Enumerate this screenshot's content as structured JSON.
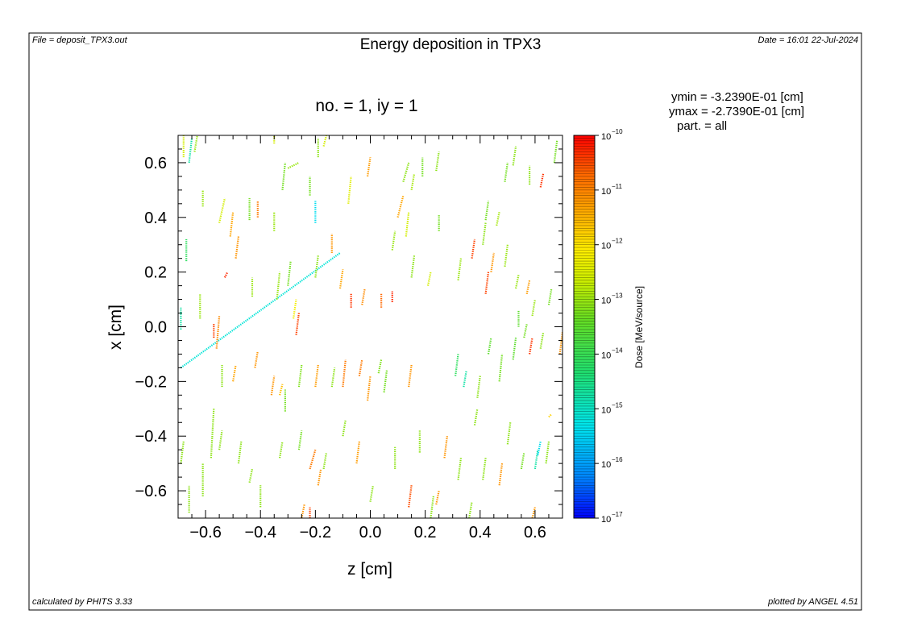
{
  "header": {
    "file": "File = deposit_TPX3.out",
    "title": "Energy deposition in TPX3",
    "date": "Date = 16:01 22-Jul-2024"
  },
  "footer": {
    "calculated": "calculated by PHITS 3.33",
    "plotted": "plotted by ANGEL 4.51"
  },
  "info": {
    "ymin": "ymin  =  -3.2390E-01 [cm]",
    "ymax": "ymax  =  -2.7390E-01 [cm]",
    "part": "part. = all"
  },
  "chart_data": {
    "type": "heatmap",
    "title": "Energy deposition in TPX3",
    "subtitle": "no. =  1,  iy =  1",
    "xlabel": "z [cm]",
    "ylabel": "x [cm]",
    "xlim": [
      -0.7,
      0.7
    ],
    "ylim": [
      -0.7,
      0.7
    ],
    "xticks": [
      -0.6,
      -0.4,
      -0.2,
      0.0,
      0.2,
      0.4,
      0.6
    ],
    "xtick_labels": [
      "−0.6",
      "−0.4",
      "−0.2",
      "0.0",
      "0.2",
      "0.4",
      "0.6"
    ],
    "yticks": [
      0.6,
      0.4,
      0.2,
      0.0,
      -0.2,
      -0.4,
      -0.6
    ],
    "ytick_labels": [
      "0.6",
      "0.4",
      "0.2",
      "0.0",
      "−0.2",
      "−0.4",
      "−0.6"
    ],
    "colorbar": {
      "label": "Dose [MeV/source]",
      "scale": "log",
      "range": [
        1e-17,
        1e-10
      ],
      "tick_exponents": [
        -10,
        -11,
        -12,
        -13,
        -14,
        -15,
        -16,
        -17
      ],
      "tick_base": "10",
      "colors": [
        "#0000ff",
        "#0088ff",
        "#00e5ee",
        "#20e070",
        "#66dd22",
        "#ccee00",
        "#ffee00",
        "#ffaa00",
        "#ff6600",
        "#ff0000"
      ]
    },
    "tracks": [
      {
        "z0": -0.69,
        "x0": -0.15,
        "z1": -0.11,
        "x1": 0.27,
        "level": -15.3
      },
      {
        "z0": -0.68,
        "x0": 0.62,
        "z1": -0.68,
        "x1": 0.7,
        "level": -13.0
      },
      {
        "z0": -0.66,
        "x0": 0.6,
        "z1": -0.65,
        "x1": 0.69,
        "level": -15.0
      },
      {
        "z0": -0.64,
        "x0": 0.64,
        "z1": -0.63,
        "x1": 0.7,
        "level": -13.5
      },
      {
        "z0": -0.61,
        "x0": 0.44,
        "z1": -0.61,
        "x1": 0.5,
        "level": -13.5
      },
      {
        "z0": -0.67,
        "x0": 0.24,
        "z1": -0.67,
        "x1": 0.32,
        "level": -14.5
      },
      {
        "z0": -0.62,
        "x0": 0.03,
        "z1": -0.62,
        "x1": 0.12,
        "level": -13.5
      },
      {
        "z0": -0.69,
        "x0": -0.01,
        "z1": -0.69,
        "x1": 0.07,
        "level": -15.0
      },
      {
        "z0": -0.55,
        "x0": 0.38,
        "z1": -0.53,
        "x1": 0.47,
        "level": -13.0
      },
      {
        "z0": -0.51,
        "x0": 0.33,
        "z1": -0.5,
        "x1": 0.42,
        "level": -11.5
      },
      {
        "z0": -0.49,
        "x0": 0.25,
        "z1": -0.48,
        "x1": 0.33,
        "level": -11.3
      },
      {
        "z0": -0.44,
        "x0": 0.39,
        "z1": -0.44,
        "x1": 0.47,
        "level": -13.8
      },
      {
        "z0": -0.41,
        "x0": 0.4,
        "z1": -0.41,
        "x1": 0.46,
        "level": -11.0
      },
      {
        "z0": -0.53,
        "x0": 0.18,
        "z1": -0.52,
        "x1": 0.2,
        "level": -10.3
      },
      {
        "z0": -0.56,
        "x0": -0.08,
        "z1": -0.55,
        "x1": 0.04,
        "level": -11.2
      },
      {
        "z0": -0.57,
        "x0": -0.04,
        "z1": -0.57,
        "x1": 0.01,
        "level": -10.5
      },
      {
        "z0": -0.43,
        "x0": 0.11,
        "z1": -0.43,
        "x1": 0.18,
        "level": -13.5
      },
      {
        "z0": -0.34,
        "x0": 0.1,
        "z1": -0.33,
        "x1": 0.2,
        "level": -13.5
      },
      {
        "z0": -0.3,
        "x0": 0.15,
        "z1": -0.29,
        "x1": 0.24,
        "level": -13.8
      },
      {
        "z0": -0.28,
        "x0": 0.03,
        "z1": -0.27,
        "x1": 0.1,
        "level": -12.5
      },
      {
        "z0": -0.27,
        "x0": -0.03,
        "z1": -0.26,
        "x1": 0.05,
        "level": -10.5
      },
      {
        "z0": -0.35,
        "x0": 0.35,
        "z1": -0.35,
        "x1": 0.42,
        "level": -13.5
      },
      {
        "z0": -0.32,
        "x0": 0.5,
        "z1": -0.31,
        "x1": 0.6,
        "level": -13.8
      },
      {
        "z0": -0.2,
        "x0": 0.38,
        "z1": -0.2,
        "x1": 0.46,
        "level": -15.5
      },
      {
        "z0": -0.3,
        "x0": 0.58,
        "z1": -0.26,
        "x1": 0.6,
        "level": -13.5
      },
      {
        "z0": -0.22,
        "x0": 0.48,
        "z1": -0.22,
        "x1": 0.55,
        "level": -13.8
      },
      {
        "z0": -0.19,
        "x0": 0.62,
        "z1": -0.19,
        "x1": 0.69,
        "level": -13.6
      },
      {
        "z0": -0.35,
        "x0": 0.67,
        "z1": -0.35,
        "x1": 0.7,
        "level": -13.0
      },
      {
        "z0": -0.17,
        "x0": 0.66,
        "z1": -0.16,
        "x1": 0.7,
        "level": -13.0
      },
      {
        "z0": -0.14,
        "x0": 0.27,
        "z1": -0.14,
        "x1": 0.34,
        "level": -11.3
      },
      {
        "z0": -0.2,
        "x0": 0.18,
        "z1": -0.19,
        "x1": 0.26,
        "level": -13.6
      },
      {
        "z0": -0.11,
        "x0": 0.14,
        "z1": -0.1,
        "x1": 0.21,
        "level": -11.5
      },
      {
        "z0": -0.08,
        "x0": 0.45,
        "z1": -0.07,
        "x1": 0.55,
        "level": -12.8
      },
      {
        "z0": -0.01,
        "x0": 0.55,
        "z1": 0.0,
        "x1": 0.62,
        "level": -11.4
      },
      {
        "z0": -0.07,
        "x0": 0.07,
        "z1": -0.07,
        "x1": 0.12,
        "level": -10.4
      },
      {
        "z0": -0.03,
        "x0": 0.08,
        "z1": -0.02,
        "x1": 0.14,
        "level": -11.2
      },
      {
        "z0": 0.04,
        "x0": 0.07,
        "z1": 0.04,
        "x1": 0.12,
        "level": -10.8
      },
      {
        "z0": 0.08,
        "x0": 0.09,
        "z1": 0.08,
        "x1": 0.13,
        "level": -10.3
      },
      {
        "z0": 0.1,
        "x0": 0.4,
        "z1": 0.12,
        "x1": 0.48,
        "level": -11.5
      },
      {
        "z0": 0.12,
        "x0": 0.53,
        "z1": 0.14,
        "x1": 0.6,
        "level": -13.6
      },
      {
        "z0": 0.15,
        "x0": 0.5,
        "z1": 0.16,
        "x1": 0.56,
        "level": -13.4
      },
      {
        "z0": 0.08,
        "x0": 0.28,
        "z1": 0.09,
        "x1": 0.35,
        "level": -13.5
      },
      {
        "z0": 0.13,
        "x0": 0.33,
        "z1": 0.14,
        "x1": 0.42,
        "level": -13.0
      },
      {
        "z0": 0.15,
        "x0": 0.18,
        "z1": 0.16,
        "x1": 0.26,
        "level": -13.6
      },
      {
        "z0": 0.19,
        "x0": 0.55,
        "z1": 0.19,
        "x1": 0.62,
        "level": -13.8
      },
      {
        "z0": 0.24,
        "x0": 0.57,
        "z1": 0.25,
        "x1": 0.64,
        "level": -13.6
      },
      {
        "z0": 0.25,
        "x0": 0.35,
        "z1": 0.25,
        "x1": 0.41,
        "level": -13.8
      },
      {
        "z0": 0.21,
        "x0": 0.15,
        "z1": 0.22,
        "x1": 0.2,
        "level": -13.0
      },
      {
        "z0": 0.32,
        "x0": 0.17,
        "z1": 0.33,
        "x1": 0.25,
        "level": -13.5
      },
      {
        "z0": 0.37,
        "x0": 0.25,
        "z1": 0.38,
        "x1": 0.32,
        "level": -10.5
      },
      {
        "z0": 0.41,
        "x0": 0.3,
        "z1": 0.42,
        "x1": 0.38,
        "level": -13.6
      },
      {
        "z0": 0.42,
        "x0": 0.39,
        "z1": 0.43,
        "x1": 0.46,
        "level": -13.8
      },
      {
        "z0": 0.46,
        "x0": 0.37,
        "z1": 0.47,
        "x1": 0.42,
        "level": -13.4
      },
      {
        "z0": 0.44,
        "x0": 0.2,
        "z1": 0.45,
        "x1": 0.27,
        "level": -11.3
      },
      {
        "z0": 0.42,
        "x0": 0.12,
        "z1": 0.43,
        "x1": 0.2,
        "level": -10.5
      },
      {
        "z0": 0.49,
        "x0": 0.22,
        "z1": 0.5,
        "x1": 0.3,
        "level": -13.5
      },
      {
        "z0": 0.49,
        "x0": 0.53,
        "z1": 0.5,
        "x1": 0.6,
        "level": -13.8
      },
      {
        "z0": 0.52,
        "x0": 0.59,
        "z1": 0.53,
        "x1": 0.66,
        "level": -13.6
      },
      {
        "z0": 0.58,
        "x0": 0.52,
        "z1": 0.58,
        "x1": 0.59,
        "level": -13.6
      },
      {
        "z0": 0.62,
        "x0": 0.51,
        "z1": 0.63,
        "x1": 0.56,
        "level": -10.4
      },
      {
        "z0": 0.67,
        "x0": 0.6,
        "z1": 0.68,
        "x1": 0.68,
        "level": -13.8
      },
      {
        "z0": 0.53,
        "x0": 0.14,
        "z1": 0.54,
        "x1": 0.19,
        "level": -13.5
      },
      {
        "z0": 0.57,
        "x0": 0.12,
        "z1": 0.58,
        "x1": 0.17,
        "level": -11.4
      },
      {
        "z0": 0.59,
        "x0": 0.04,
        "z1": 0.6,
        "x1": 0.1,
        "level": -13.5
      },
      {
        "z0": 0.65,
        "x0": 0.08,
        "z1": 0.66,
        "x1": 0.14,
        "level": -13.8
      },
      {
        "z0": 0.54,
        "x0": 0.0,
        "z1": 0.54,
        "x1": 0.06,
        "level": -14.0
      },
      {
        "z0": -0.54,
        "x0": -0.22,
        "z1": -0.54,
        "x1": -0.14,
        "level": -13.6
      },
      {
        "z0": -0.5,
        "x0": -0.2,
        "z1": -0.49,
        "x1": -0.14,
        "level": -11.5
      },
      {
        "z0": -0.42,
        "x0": -0.15,
        "z1": -0.41,
        "x1": -0.09,
        "level": -11.3
      },
      {
        "z0": -0.36,
        "x0": -0.25,
        "z1": -0.35,
        "x1": -0.18,
        "level": -11.3
      },
      {
        "z0": -0.33,
        "x0": -0.25,
        "z1": -0.32,
        "x1": -0.21,
        "level": -11.8
      },
      {
        "z0": -0.31,
        "x0": -0.31,
        "z1": -0.31,
        "x1": -0.23,
        "level": -13.8
      },
      {
        "z0": -0.26,
        "x0": -0.22,
        "z1": -0.25,
        "x1": -0.14,
        "level": -13.7
      },
      {
        "z0": -0.2,
        "x0": -0.22,
        "z1": -0.19,
        "x1": -0.14,
        "level": -11.4
      },
      {
        "z0": -0.14,
        "x0": -0.22,
        "z1": -0.13,
        "x1": -0.15,
        "level": -13.6
      },
      {
        "z0": -0.1,
        "x0": -0.22,
        "z1": -0.09,
        "x1": -0.12,
        "level": -11.0
      },
      {
        "z0": -0.04,
        "x0": -0.18,
        "z1": -0.03,
        "x1": -0.12,
        "level": -11.0
      },
      {
        "z0": -0.01,
        "x0": -0.27,
        "z1": 0.0,
        "x1": -0.18,
        "level": -11.3
      },
      {
        "z0": 0.03,
        "x0": -0.17,
        "z1": 0.04,
        "x1": -0.12,
        "level": -13.7
      },
      {
        "z0": 0.05,
        "x0": -0.24,
        "z1": 0.06,
        "x1": -0.16,
        "level": -13.8
      },
      {
        "z0": 0.14,
        "x0": -0.22,
        "z1": 0.15,
        "x1": -0.14,
        "level": -11.3
      },
      {
        "z0": 0.31,
        "x0": -0.18,
        "z1": 0.32,
        "x1": -0.1,
        "level": -14.5
      },
      {
        "z0": 0.34,
        "x0": -0.22,
        "z1": 0.35,
        "x1": -0.16,
        "level": -15.0
      },
      {
        "z0": 0.39,
        "x0": -0.26,
        "z1": 0.4,
        "x1": -0.18,
        "level": -13.6
      },
      {
        "z0": 0.47,
        "x0": -0.2,
        "z1": 0.48,
        "x1": -0.1,
        "level": -13.8
      },
      {
        "z0": 0.52,
        "x0": -0.12,
        "z1": 0.53,
        "x1": -0.04,
        "level": -14.0
      },
      {
        "z0": 0.56,
        "x0": -0.04,
        "z1": 0.57,
        "x1": 0.01,
        "level": -13.8
      },
      {
        "z0": 0.58,
        "x0": -0.1,
        "z1": 0.59,
        "x1": -0.04,
        "level": -10.4
      },
      {
        "z0": 0.62,
        "x0": -0.08,
        "z1": 0.63,
        "x1": -0.02,
        "level": -13.6
      },
      {
        "z0": 0.69,
        "x0": -0.1,
        "z1": 0.7,
        "x1": -0.02,
        "level": -11.3
      },
      {
        "z0": 0.43,
        "x0": -0.1,
        "z1": 0.44,
        "x1": -0.04,
        "level": -14.0
      },
      {
        "z0": -0.69,
        "x0": -0.5,
        "z1": -0.68,
        "x1": -0.42,
        "level": -13.6
      },
      {
        "z0": -0.66,
        "x0": -0.68,
        "z1": -0.66,
        "x1": -0.58,
        "level": -13.6
      },
      {
        "z0": -0.61,
        "x0": -0.62,
        "z1": -0.61,
        "x1": -0.5,
        "level": -13.6
      },
      {
        "z0": -0.58,
        "x0": -0.48,
        "z1": -0.57,
        "x1": -0.3,
        "level": -13.6
      },
      {
        "z0": -0.55,
        "x0": -0.45,
        "z1": -0.54,
        "x1": -0.38,
        "level": -13.6
      },
      {
        "z0": -0.48,
        "x0": -0.5,
        "z1": -0.47,
        "x1": -0.42,
        "level": -13.6
      },
      {
        "z0": -0.44,
        "x0": -0.57,
        "z1": -0.43,
        "x1": -0.52,
        "level": -13.6
      },
      {
        "z0": -0.33,
        "x0": -0.48,
        "z1": -0.32,
        "x1": -0.42,
        "level": -13.6
      },
      {
        "z0": -0.26,
        "x0": -0.45,
        "z1": -0.25,
        "x1": -0.38,
        "level": -13.8
      },
      {
        "z0": -0.22,
        "x0": -0.52,
        "z1": -0.2,
        "x1": -0.45,
        "level": -11.0
      },
      {
        "z0": -0.19,
        "x0": -0.58,
        "z1": -0.18,
        "x1": -0.52,
        "level": -11.3
      },
      {
        "z0": -0.17,
        "x0": -0.52,
        "z1": -0.16,
        "x1": -0.46,
        "level": -13.6
      },
      {
        "z0": -0.05,
        "x0": -0.5,
        "z1": -0.04,
        "x1": -0.42,
        "level": -11.4
      },
      {
        "z0": -0.4,
        "x0": -0.66,
        "z1": -0.4,
        "x1": -0.58,
        "level": -13.6
      },
      {
        "z0": -0.22,
        "x0": -0.7,
        "z1": -0.22,
        "x1": -0.66,
        "level": -10.5
      },
      {
        "z0": -0.25,
        "x0": -0.7,
        "z1": -0.24,
        "x1": -0.65,
        "level": -11.3
      },
      {
        "z0": 0.09,
        "x0": -0.52,
        "z1": 0.09,
        "x1": -0.44,
        "level": -13.6
      },
      {
        "z0": 0.18,
        "x0": -0.46,
        "z1": 0.18,
        "x1": -0.38,
        "level": -13.6
      },
      {
        "z0": 0.14,
        "x0": -0.66,
        "z1": 0.15,
        "x1": -0.58,
        "level": -10.6
      },
      {
        "z0": 0.22,
        "x0": -0.7,
        "z1": 0.23,
        "x1": -0.62,
        "level": -13.6
      },
      {
        "z0": 0.24,
        "x0": -0.65,
        "z1": 0.25,
        "x1": -0.6,
        "level": -11.3
      },
      {
        "z0": 0.27,
        "x0": -0.48,
        "z1": 0.28,
        "x1": -0.4,
        "level": -11.3
      },
      {
        "z0": 0.32,
        "x0": -0.56,
        "z1": 0.33,
        "x1": -0.48,
        "level": -13.6
      },
      {
        "z0": 0.41,
        "x0": -0.56,
        "z1": 0.42,
        "x1": -0.48,
        "level": -13.6
      },
      {
        "z0": 0.47,
        "x0": -0.58,
        "z1": 0.48,
        "x1": -0.5,
        "level": -11.3
      },
      {
        "z0": 0.5,
        "x0": -0.43,
        "z1": 0.51,
        "x1": -0.35,
        "level": -13.6
      },
      {
        "z0": 0.55,
        "x0": -0.52,
        "z1": 0.56,
        "x1": -0.46,
        "level": -13.8
      },
      {
        "z0": 0.6,
        "x0": -0.52,
        "z1": 0.61,
        "x1": -0.45,
        "level": -15.0
      },
      {
        "z0": 0.61,
        "x0": -0.47,
        "z1": 0.62,
        "x1": -0.42,
        "level": -15.5
      },
      {
        "z0": 0.64,
        "x0": -0.5,
        "z1": 0.65,
        "x1": -0.42,
        "level": -13.6
      },
      {
        "z0": 0.65,
        "x0": -0.33,
        "z1": 0.66,
        "x1": -0.32,
        "level": -12.0
      },
      {
        "z0": 0.59,
        "x0": -0.7,
        "z1": 0.6,
        "x1": -0.66,
        "level": -11.3
      },
      {
        "z0": 0.36,
        "x0": -0.7,
        "z1": 0.37,
        "x1": -0.64,
        "level": -13.6
      },
      {
        "z0": 0.38,
        "x0": -0.36,
        "z1": 0.39,
        "x1": -0.3,
        "level": -13.6
      },
      {
        "z0": 0.0,
        "x0": -0.64,
        "z1": 0.01,
        "x1": -0.58,
        "level": -13.6
      },
      {
        "z0": -0.1,
        "x0": -0.4,
        "z1": -0.09,
        "x1": -0.34,
        "level": -13.6
      }
    ]
  }
}
